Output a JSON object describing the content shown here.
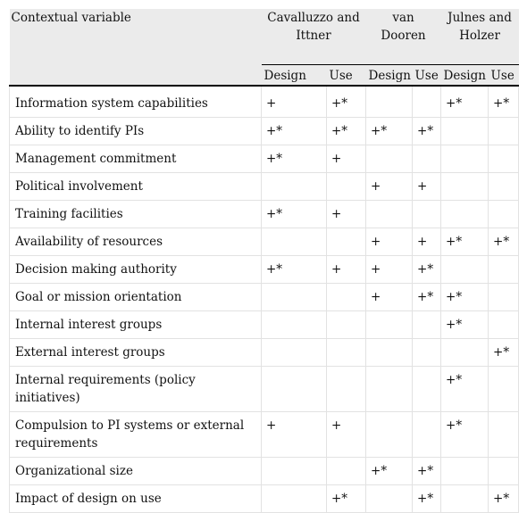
{
  "header": {
    "contextual_variable": "Contextual variable",
    "groups": [
      {
        "line1": "Cavalluzzo and",
        "line2": "Ittner"
      },
      {
        "line1": "van Dooren",
        "line2": ""
      },
      {
        "line1": "Julnes and",
        "line2": "Holzer"
      }
    ],
    "subheaders": [
      "Design",
      "Use",
      "Design",
      "Use",
      "Design",
      "Use"
    ]
  },
  "rows": [
    {
      "label": "Information system capabilities",
      "cells": [
        "+",
        "+*",
        "",
        "",
        "+*",
        "+*"
      ]
    },
    {
      "label": "Ability to identify PIs",
      "cells": [
        "+*",
        "+*",
        "+*",
        "+*",
        "",
        ""
      ]
    },
    {
      "label": "Management commitment",
      "cells": [
        "+*",
        "+",
        "",
        "",
        "",
        ""
      ]
    },
    {
      "label": "Political involvement",
      "cells": [
        "",
        "",
        "+",
        "+",
        "",
        ""
      ]
    },
    {
      "label": "Training facilities",
      "cells": [
        "+*",
        "+",
        "",
        "",
        "",
        ""
      ]
    },
    {
      "label": "Availability of resources",
      "cells": [
        "",
        "",
        "+",
        "+",
        "+*",
        "+*"
      ]
    },
    {
      "label": "Decision making authority",
      "cells": [
        "+*",
        "+",
        "+",
        "+*",
        "",
        ""
      ]
    },
    {
      "label": "Goal or mission orientation",
      "cells": [
        "",
        "",
        "+",
        "+*",
        "+*",
        ""
      ]
    },
    {
      "label": "Internal interest groups",
      "cells": [
        "",
        "",
        "",
        "",
        "+*",
        ""
      ]
    },
    {
      "label": "External interest groups",
      "cells": [
        "",
        "",
        "",
        "",
        "",
        "+*"
      ]
    },
    {
      "label": "Internal requirements (policy initiatives)",
      "cells": [
        "",
        "",
        "",
        "",
        "+*",
        ""
      ]
    },
    {
      "label": "Compulsion to PI systems or external requirements",
      "cells": [
        "+",
        "+",
        "",
        "",
        "+*",
        ""
      ]
    },
    {
      "label": "Organizational size",
      "cells": [
        "",
        "",
        "+*",
        "+*",
        "",
        ""
      ]
    },
    {
      "label": "Impact of design on use",
      "cells": [
        "",
        "+*",
        "",
        "+*",
        "",
        "+*"
      ]
    }
  ]
}
